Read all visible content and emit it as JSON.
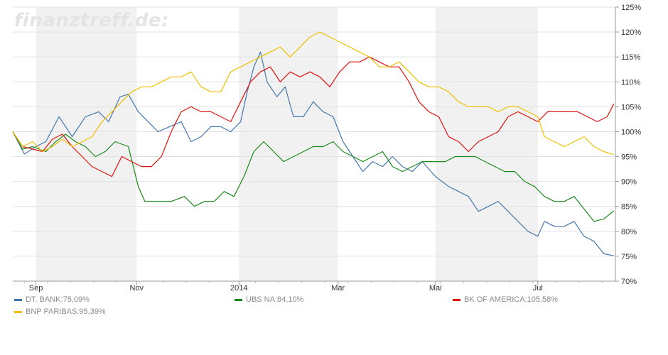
{
  "watermark": "finanztreff.de:",
  "chart_data": {
    "type": "line",
    "y_ticks": [
      "125%",
      "120%",
      "115%",
      "110%",
      "105%",
      "100%",
      "95%",
      "90%",
      "85%",
      "80%",
      "75%",
      "70%"
    ],
    "ylim": [
      70,
      125
    ],
    "x_ticks": [
      "Sep",
      "Nov",
      "2014",
      "Mar",
      "Mai",
      "Jul"
    ],
    "x_tick_days": [
      14,
      75,
      137,
      197,
      256,
      318
    ],
    "xlim": [
      0,
      365
    ],
    "shaded_bands": [
      [
        14,
        75
      ],
      [
        137,
        197
      ],
      [
        256,
        318
      ]
    ],
    "grid": true,
    "series": [
      {
        "name": "DT. BANK",
        "final": "75,09%",
        "color": "#4477aa",
        "points": [
          [
            0,
            100
          ],
          [
            7,
            95.5
          ],
          [
            14,
            97
          ],
          [
            20,
            98
          ],
          [
            28,
            103
          ],
          [
            36,
            99
          ],
          [
            44,
            103
          ],
          [
            52,
            104
          ],
          [
            58,
            102
          ],
          [
            65,
            107
          ],
          [
            70,
            107.5
          ],
          [
            76,
            104
          ],
          [
            82,
            102
          ],
          [
            88,
            100
          ],
          [
            95,
            101
          ],
          [
            102,
            102
          ],
          [
            108,
            98
          ],
          [
            114,
            99
          ],
          [
            120,
            101
          ],
          [
            126,
            101
          ],
          [
            132,
            100
          ],
          [
            138,
            102
          ],
          [
            142,
            108
          ],
          [
            146,
            113
          ],
          [
            150,
            116
          ],
          [
            154,
            110
          ],
          [
            160,
            107
          ],
          [
            165,
            109
          ],
          [
            170,
            103
          ],
          [
            176,
            103
          ],
          [
            182,
            106
          ],
          [
            188,
            104
          ],
          [
            194,
            103
          ],
          [
            200,
            98
          ],
          [
            206,
            95
          ],
          [
            212,
            92
          ],
          [
            218,
            94
          ],
          [
            224,
            93
          ],
          [
            230,
            95
          ],
          [
            236,
            93
          ],
          [
            242,
            92
          ],
          [
            248,
            94
          ],
          [
            256,
            91
          ],
          [
            264,
            89
          ],
          [
            270,
            88
          ],
          [
            276,
            87
          ],
          [
            282,
            84
          ],
          [
            288,
            85
          ],
          [
            294,
            86
          ],
          [
            300,
            84
          ],
          [
            306,
            82
          ],
          [
            312,
            80
          ],
          [
            318,
            79
          ],
          [
            322,
            82
          ],
          [
            328,
            81
          ],
          [
            334,
            81
          ],
          [
            340,
            82
          ],
          [
            346,
            79
          ],
          [
            352,
            78
          ],
          [
            358,
            75.5
          ],
          [
            364,
            75.1
          ]
        ]
      },
      {
        "name": "UBS NA",
        "final": "84,10%",
        "color": "#1a8a1a",
        "points": [
          [
            0,
            100
          ],
          [
            6,
            96.5
          ],
          [
            12,
            97
          ],
          [
            20,
            96
          ],
          [
            26,
            98
          ],
          [
            32,
            99.5
          ],
          [
            38,
            98
          ],
          [
            44,
            97
          ],
          [
            50,
            95
          ],
          [
            56,
            96
          ],
          [
            62,
            98
          ],
          [
            70,
            97
          ],
          [
            76,
            89
          ],
          [
            80,
            86
          ],
          [
            88,
            86
          ],
          [
            96,
            86
          ],
          [
            104,
            87
          ],
          [
            110,
            85
          ],
          [
            116,
            86
          ],
          [
            122,
            86
          ],
          [
            128,
            88
          ],
          [
            134,
            87
          ],
          [
            140,
            91
          ],
          [
            146,
            96
          ],
          [
            152,
            98
          ],
          [
            158,
            96
          ],
          [
            164,
            94
          ],
          [
            170,
            95
          ],
          [
            176,
            96
          ],
          [
            182,
            97
          ],
          [
            188,
            97
          ],
          [
            194,
            98
          ],
          [
            200,
            96
          ],
          [
            206,
            95
          ],
          [
            212,
            94
          ],
          [
            218,
            95
          ],
          [
            224,
            96
          ],
          [
            230,
            93
          ],
          [
            236,
            92
          ],
          [
            242,
            93
          ],
          [
            248,
            94
          ],
          [
            256,
            94
          ],
          [
            262,
            94
          ],
          [
            268,
            95
          ],
          [
            274,
            95
          ],
          [
            280,
            95
          ],
          [
            286,
            94
          ],
          [
            292,
            93
          ],
          [
            298,
            92
          ],
          [
            304,
            92
          ],
          [
            310,
            90
          ],
          [
            316,
            89
          ],
          [
            322,
            87
          ],
          [
            328,
            86
          ],
          [
            334,
            86
          ],
          [
            340,
            87
          ],
          [
            346,
            84.5
          ],
          [
            352,
            82
          ],
          [
            358,
            82.5
          ],
          [
            364,
            84.1
          ]
        ]
      },
      {
        "name": "BK OF AMERICA",
        "final": "105,58%",
        "color": "#dd1111",
        "points": [
          [
            0,
            100
          ],
          [
            6,
            97
          ],
          [
            12,
            96.5
          ],
          [
            18,
            96
          ],
          [
            24,
            98.5
          ],
          [
            30,
            99.5
          ],
          [
            36,
            97
          ],
          [
            42,
            95
          ],
          [
            48,
            93
          ],
          [
            54,
            92
          ],
          [
            60,
            91
          ],
          [
            66,
            95
          ],
          [
            72,
            94
          ],
          [
            78,
            93
          ],
          [
            84,
            93
          ],
          [
            90,
            95
          ],
          [
            96,
            100
          ],
          [
            102,
            104
          ],
          [
            108,
            105
          ],
          [
            114,
            104
          ],
          [
            120,
            104
          ],
          [
            126,
            103
          ],
          [
            132,
            102
          ],
          [
            138,
            106
          ],
          [
            144,
            110
          ],
          [
            150,
            112
          ],
          [
            156,
            113
          ],
          [
            162,
            110
          ],
          [
            168,
            112
          ],
          [
            174,
            111
          ],
          [
            180,
            112
          ],
          [
            186,
            111
          ],
          [
            192,
            109
          ],
          [
            198,
            112
          ],
          [
            204,
            114
          ],
          [
            210,
            114
          ],
          [
            216,
            115
          ],
          [
            222,
            114
          ],
          [
            228,
            113
          ],
          [
            234,
            113
          ],
          [
            240,
            110
          ],
          [
            246,
            106
          ],
          [
            252,
            104
          ],
          [
            258,
            103
          ],
          [
            264,
            99
          ],
          [
            270,
            98
          ],
          [
            276,
            96
          ],
          [
            282,
            98
          ],
          [
            288,
            99
          ],
          [
            294,
            100
          ],
          [
            300,
            103
          ],
          [
            306,
            104
          ],
          [
            312,
            103
          ],
          [
            318,
            102
          ],
          [
            324,
            104
          ],
          [
            330,
            104
          ],
          [
            336,
            104
          ],
          [
            342,
            104
          ],
          [
            348,
            103
          ],
          [
            354,
            102
          ],
          [
            360,
            103
          ],
          [
            364,
            105.6
          ]
        ]
      },
      {
        "name": "BNP PARIBAS",
        "final": "95,39%",
        "color": "#f0c000",
        "points": [
          [
            0,
            100
          ],
          [
            6,
            97
          ],
          [
            12,
            98
          ],
          [
            18,
            96
          ],
          [
            24,
            97
          ],
          [
            30,
            98.5
          ],
          [
            36,
            97
          ],
          [
            42,
            98
          ],
          [
            48,
            99
          ],
          [
            54,
            102
          ],
          [
            60,
            104
          ],
          [
            66,
            106
          ],
          [
            72,
            108
          ],
          [
            78,
            109
          ],
          [
            84,
            109
          ],
          [
            90,
            110
          ],
          [
            96,
            111
          ],
          [
            102,
            111
          ],
          [
            108,
            112
          ],
          [
            114,
            109
          ],
          [
            120,
            108
          ],
          [
            126,
            108
          ],
          [
            132,
            112
          ],
          [
            138,
            113
          ],
          [
            144,
            114
          ],
          [
            150,
            115
          ],
          [
            156,
            116
          ],
          [
            162,
            117
          ],
          [
            168,
            115
          ],
          [
            174,
            117
          ],
          [
            180,
            119
          ],
          [
            186,
            120
          ],
          [
            192,
            119
          ],
          [
            198,
            118
          ],
          [
            204,
            117
          ],
          [
            210,
            116
          ],
          [
            216,
            115
          ],
          [
            222,
            113
          ],
          [
            228,
            113
          ],
          [
            234,
            114
          ],
          [
            240,
            112
          ],
          [
            246,
            110
          ],
          [
            252,
            109
          ],
          [
            258,
            109
          ],
          [
            264,
            108
          ],
          [
            270,
            106
          ],
          [
            276,
            105
          ],
          [
            282,
            105
          ],
          [
            288,
            105
          ],
          [
            294,
            104
          ],
          [
            300,
            105
          ],
          [
            306,
            105
          ],
          [
            312,
            104
          ],
          [
            318,
            103
          ],
          [
            322,
            99
          ],
          [
            328,
            98
          ],
          [
            334,
            97
          ],
          [
            340,
            98
          ],
          [
            346,
            99
          ],
          [
            352,
            97
          ],
          [
            358,
            96
          ],
          [
            364,
            95.4
          ]
        ]
      }
    ]
  }
}
